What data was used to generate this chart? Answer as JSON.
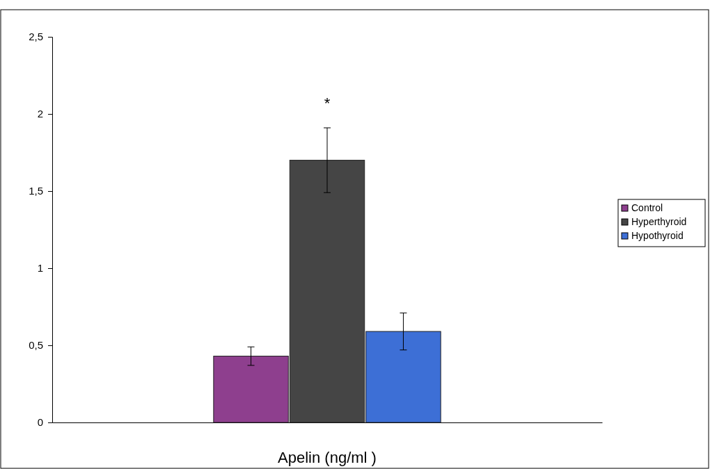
{
  "chart_data": {
    "type": "bar",
    "xlabel": "Apelin (ng/ml )",
    "categories": [
      null
    ],
    "series": [
      {
        "name": "Control",
        "color": "#8e3f8e",
        "values": [
          0.43
        ],
        "errors": [
          0.06
        ]
      },
      {
        "name": "Hyperthyroid",
        "color": "#454545",
        "values": [
          1.7
        ],
        "errors": [
          0.21
        ]
      },
      {
        "name": "Hypothyroid",
        "color": "#3d6fd6",
        "values": [
          0.59
        ],
        "errors": [
          0.12
        ]
      }
    ],
    "ylim": [
      0,
      2.5
    ],
    "yticks": [
      0,
      {
        "value": 0.5,
        "label": "0,5"
      },
      1,
      {
        "value": 1.5,
        "label": "1,5"
      },
      2,
      {
        "value": 2.5,
        "label": "2,5"
      }
    ],
    "annotations": [
      "*"
    ],
    "legend": "right",
    "grid": false
  }
}
